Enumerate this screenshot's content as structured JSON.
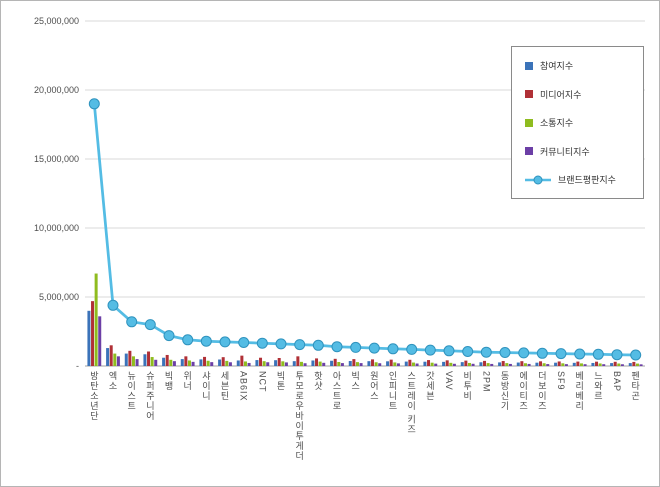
{
  "chart_data": {
    "type": "combo (bar + line)",
    "title": "",
    "xlabel": "",
    "ylabel": "",
    "ylim": [
      0,
      25000000
    ],
    "ytick_interval": 5000000,
    "ytick_labels": [
      "-",
      "5,000,000",
      "10,000,000",
      "15,000,000",
      "20,000,000",
      "25,000,000"
    ],
    "grid": true,
    "legend_position": "top-right",
    "colors": {
      "gridline": "#d9d9d9",
      "axis": "#a0a0a0",
      "text": "#4d4d4d"
    },
    "categories": [
      "방탄소년단",
      "엑소",
      "뉴이스트",
      "슈퍼주니어",
      "빅뱅",
      "위너",
      "샤이니",
      "세븐틴",
      "AB6IX",
      "NCT",
      "빅톤",
      "투모로우바이투게더",
      "핫샷",
      "아스트로",
      "빅스",
      "원어스",
      "인피니트",
      "스트레이 키즈",
      "갓세븐",
      "VAV",
      "비투비",
      "2PM",
      "동방신기",
      "에이티즈",
      "더보이즈",
      "SF9",
      "베리베리",
      "느와르",
      "BAP",
      "펜타곤"
    ],
    "series": [
      {
        "name": "참여지수",
        "type": "bar",
        "color": "#3b73b9",
        "values": [
          4000000,
          1300000,
          900000,
          850000,
          600000,
          500000,
          480000,
          470000,
          400000,
          430000,
          420000,
          350000,
          400000,
          380000,
          360000,
          350000,
          340000,
          320000,
          310000,
          300000,
          280000,
          270000,
          260000,
          250000,
          240000,
          240000,
          230000,
          220000,
          210000,
          210000
        ]
      },
      {
        "name": "미디어지수",
        "type": "bar",
        "color": "#b03036",
        "values": [
          4700000,
          1500000,
          1100000,
          1050000,
          800000,
          700000,
          660000,
          640000,
          750000,
          600000,
          580000,
          700000,
          550000,
          520000,
          500000,
          480000,
          460000,
          450000,
          430000,
          410000,
          390000,
          370000,
          360000,
          350000,
          340000,
          330000,
          320000,
          315000,
          305000,
          295000
        ]
      },
      {
        "name": "소통지수",
        "type": "bar",
        "color": "#8fbc1f",
        "values": [
          6700000,
          900000,
          700000,
          650000,
          450000,
          400000,
          380000,
          370000,
          330000,
          350000,
          340000,
          300000,
          320000,
          290000,
          280000,
          270000,
          260000,
          250000,
          240000,
          230000,
          220000,
          210000,
          210000,
          200000,
          200000,
          195000,
          190000,
          185000,
          180000,
          175000
        ]
      },
      {
        "name": "커뮤니티지수",
        "type": "bar",
        "color": "#6c3fa6",
        "values": [
          3600000,
          700000,
          500000,
          450000,
          350000,
          300000,
          280000,
          270000,
          220000,
          270000,
          260000,
          200000,
          230000,
          210000,
          210000,
          200000,
          190000,
          180000,
          170000,
          160000,
          160000,
          150000,
          150000,
          150000,
          140000,
          135000,
          130000,
          130000,
          125000,
          120000
        ]
      },
      {
        "name": "브랜드평판지수",
        "type": "line",
        "color": "#54bce4",
        "marker_fill": "#54bce4",
        "marker_stroke": "#2f93be",
        "values": [
          19000000,
          4400000,
          3200000,
          3000000,
          2200000,
          1900000,
          1800000,
          1750000,
          1700000,
          1650000,
          1600000,
          1550000,
          1500000,
          1400000,
          1350000,
          1300000,
          1250000,
          1200000,
          1150000,
          1100000,
          1050000,
          1000000,
          980000,
          950000,
          920000,
          900000,
          870000,
          850000,
          820000,
          800000
        ]
      }
    ]
  }
}
